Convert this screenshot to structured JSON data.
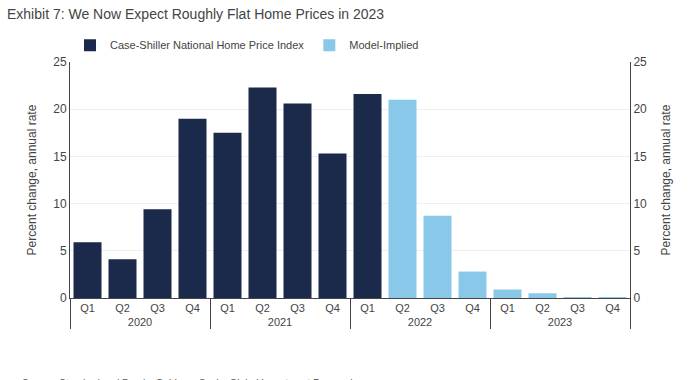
{
  "chart_data": {
    "type": "bar",
    "title": "Exhibit 7: We Now Expect Roughly Flat Home Prices in 2023",
    "ylabel": "Percent change, annual rate",
    "y2label": "Percent change, annual rate",
    "annotations": [
      "Source: Standard and Poor's, Goldman Sachs Global Investment Research"
    ],
    "categories": [
      "Q1",
      "Q2",
      "Q3",
      "Q4",
      "Q1",
      "Q2",
      "Q3",
      "Q4",
      "Q1",
      "Q2",
      "Q3",
      "Q4",
      "Q1",
      "Q2",
      "Q3",
      "Q4"
    ],
    "groups": [
      "2020",
      "2020",
      "2020",
      "2020",
      "2021",
      "2021",
      "2021",
      "2021",
      "2022",
      "2022",
      "2022",
      "2022",
      "2023",
      "2023",
      "2023",
      "2023"
    ],
    "series": [
      {
        "name": "Case-Shiller National Home Price Index",
        "color": "#1b2a4a",
        "values": [
          5.9,
          4.1,
          9.4,
          19.0,
          17.5,
          22.3,
          20.6,
          15.3,
          21.6,
          null,
          null,
          null,
          null,
          null,
          null,
          null
        ]
      },
      {
        "name": "Model-Implied",
        "color": "#89c8e8",
        "values": [
          null,
          null,
          null,
          null,
          null,
          null,
          null,
          null,
          null,
          21.0,
          8.7,
          2.8,
          0.9,
          0.5,
          0.1,
          0.05
        ]
      }
    ],
    "ylim": [
      0,
      25
    ],
    "yticks": [
      0,
      5,
      10,
      15,
      20,
      25
    ],
    "y2lim": [
      0,
      25
    ],
    "y2ticks": [
      0,
      5,
      10,
      15,
      20,
      25
    ],
    "grid": true,
    "legend": "upper left"
  }
}
